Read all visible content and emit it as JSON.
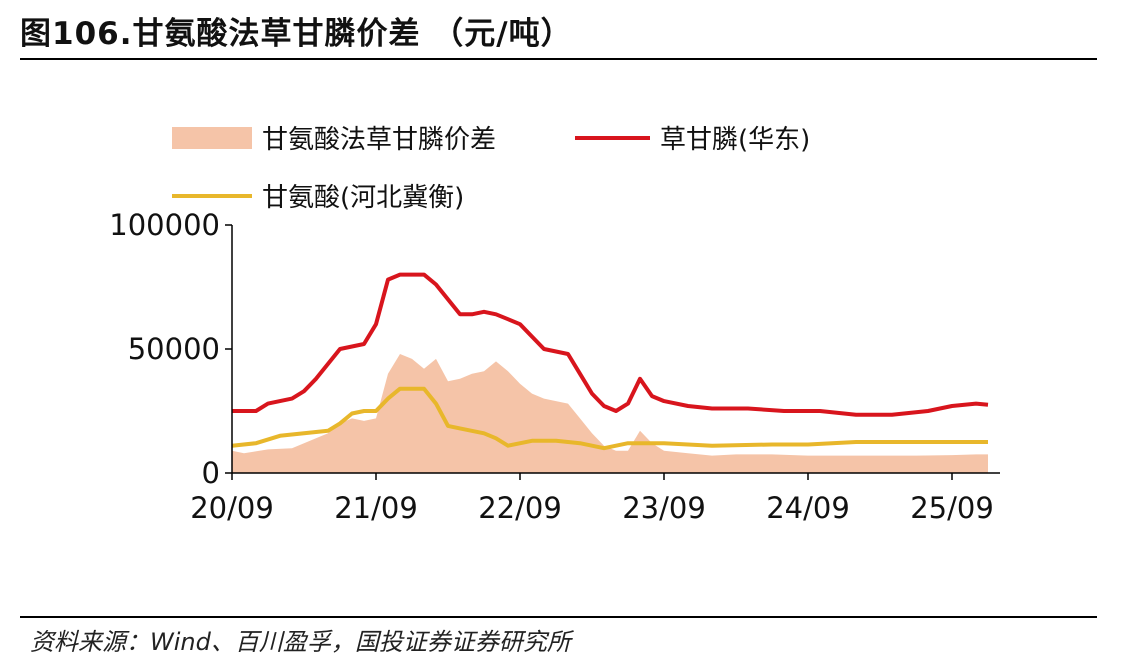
{
  "header": {
    "title": "图106.甘氨酸法草甘膦价差 （元/吨）"
  },
  "footer": {
    "source": "资料来源：Wind、百川盈孚，国投证券证券研究所"
  },
  "colors": {
    "spread_fill": "#f5c4a8",
    "glyphosate_line": "#d8151d",
    "glycine_line": "#e8b72b",
    "axis": "#000000"
  },
  "chart_data": {
    "type": "area",
    "title": "",
    "xlabel": "",
    "ylabel": "",
    "ylim": [
      0,
      100000
    ],
    "yticks": [
      0,
      50000,
      100000
    ],
    "xlim": [
      "2020-09",
      "2026-01"
    ],
    "xticks": [
      "20/09",
      "21/09",
      "22/09",
      "23/09",
      "24/09",
      "25/09"
    ],
    "legend": "top",
    "grid": false,
    "series": [
      {
        "name": "甘氨酸法草甘膦价差",
        "kind": "area",
        "points": [
          [
            "2020-09",
            9000
          ],
          [
            "2020-10",
            8000
          ],
          [
            "2020-12",
            9500
          ],
          [
            "2021-02",
            10000
          ],
          [
            "2021-03",
            12000
          ],
          [
            "2021-05",
            16000
          ],
          [
            "2021-06",
            20000
          ],
          [
            "2021-07",
            22000
          ],
          [
            "2021-08",
            21000
          ],
          [
            "2021-09",
            22000
          ],
          [
            "2021-10",
            40000
          ],
          [
            "2021-11",
            48000
          ],
          [
            "2021-12",
            46000
          ],
          [
            "2022-01",
            42000
          ],
          [
            "2022-02",
            46000
          ],
          [
            "2022-03",
            37000
          ],
          [
            "2022-04",
            38000
          ],
          [
            "2022-05",
            40000
          ],
          [
            "2022-06",
            41000
          ],
          [
            "2022-07",
            45000
          ],
          [
            "2022-08",
            41000
          ],
          [
            "2022-09",
            36000
          ],
          [
            "2022-10",
            32000
          ],
          [
            "2022-11",
            30000
          ],
          [
            "2022-12",
            29000
          ],
          [
            "2023-01",
            28000
          ],
          [
            "2023-02",
            22000
          ],
          [
            "2023-03",
            16000
          ],
          [
            "2023-04",
            11000
          ],
          [
            "2023-05",
            9000
          ],
          [
            "2023-06",
            9000
          ],
          [
            "2023-07",
            17000
          ],
          [
            "2023-08",
            12000
          ],
          [
            "2023-09",
            9000
          ],
          [
            "2023-11",
            8000
          ],
          [
            "2024-01",
            7000
          ],
          [
            "2024-03",
            7500
          ],
          [
            "2024-06",
            7500
          ],
          [
            "2024-09",
            7000
          ],
          [
            "2024-12",
            7000
          ],
          [
            "2025-03",
            7000
          ],
          [
            "2025-06",
            7000
          ],
          [
            "2025-09",
            7200
          ],
          [
            "2025-11",
            7500
          ],
          [
            "2025-12",
            7500
          ]
        ]
      },
      {
        "name": "草甘膦(华东)",
        "kind": "line",
        "points": [
          [
            "2020-09",
            25000
          ],
          [
            "2020-11",
            25000
          ],
          [
            "2020-12",
            28000
          ],
          [
            "2021-02",
            30000
          ],
          [
            "2021-03",
            33000
          ],
          [
            "2021-04",
            38000
          ],
          [
            "2021-05",
            44000
          ],
          [
            "2021-06",
            50000
          ],
          [
            "2021-07",
            51000
          ],
          [
            "2021-08",
            52000
          ],
          [
            "2021-09",
            60000
          ],
          [
            "2021-10",
            78000
          ],
          [
            "2021-11",
            80000
          ],
          [
            "2022-01",
            80000
          ],
          [
            "2022-02",
            76000
          ],
          [
            "2022-03",
            70000
          ],
          [
            "2022-04",
            64000
          ],
          [
            "2022-05",
            64000
          ],
          [
            "2022-06",
            65000
          ],
          [
            "2022-07",
            64000
          ],
          [
            "2022-08",
            62000
          ],
          [
            "2022-09",
            60000
          ],
          [
            "2022-10",
            55000
          ],
          [
            "2022-11",
            50000
          ],
          [
            "2022-12",
            49000
          ],
          [
            "2023-01",
            48000
          ],
          [
            "2023-02",
            40000
          ],
          [
            "2023-03",
            32000
          ],
          [
            "2023-04",
            27000
          ],
          [
            "2023-05",
            25000
          ],
          [
            "2023-06",
            28000
          ],
          [
            "2023-07",
            38000
          ],
          [
            "2023-08",
            31000
          ],
          [
            "2023-09",
            29000
          ],
          [
            "2023-11",
            27000
          ],
          [
            "2024-01",
            26000
          ],
          [
            "2024-04",
            26000
          ],
          [
            "2024-07",
            25000
          ],
          [
            "2024-10",
            25000
          ],
          [
            "2025-01",
            23500
          ],
          [
            "2025-04",
            23500
          ],
          [
            "2025-07",
            25000
          ],
          [
            "2025-09",
            27000
          ],
          [
            "2025-11",
            28000
          ],
          [
            "2025-12",
            27500
          ]
        ]
      },
      {
        "name": "甘氨酸(河北冀衡)",
        "kind": "line",
        "points": [
          [
            "2020-09",
            11000
          ],
          [
            "2020-11",
            12000
          ],
          [
            "2021-01",
            15000
          ],
          [
            "2021-03",
            16000
          ],
          [
            "2021-05",
            17000
          ],
          [
            "2021-06",
            20000
          ],
          [
            "2021-07",
            24000
          ],
          [
            "2021-08",
            25000
          ],
          [
            "2021-09",
            25000
          ],
          [
            "2021-10",
            30000
          ],
          [
            "2021-11",
            34000
          ],
          [
            "2022-01",
            34000
          ],
          [
            "2022-02",
            28000
          ],
          [
            "2022-03",
            19000
          ],
          [
            "2022-04",
            18000
          ],
          [
            "2022-06",
            16000
          ],
          [
            "2022-07",
            14000
          ],
          [
            "2022-08",
            11000
          ],
          [
            "2022-10",
            13000
          ],
          [
            "2022-12",
            13000
          ],
          [
            "2023-02",
            12000
          ],
          [
            "2023-04",
            10000
          ],
          [
            "2023-06",
            12000
          ],
          [
            "2023-09",
            12000
          ],
          [
            "2024-01",
            11000
          ],
          [
            "2024-06",
            11500
          ],
          [
            "2024-09",
            11500
          ],
          [
            "2025-01",
            12500
          ],
          [
            "2025-06",
            12500
          ],
          [
            "2025-12",
            12500
          ]
        ]
      }
    ]
  }
}
